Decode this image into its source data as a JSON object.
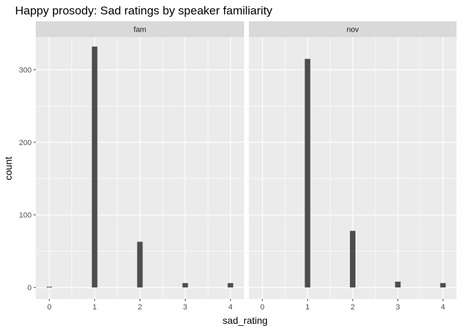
{
  "chart_data": {
    "type": "bar",
    "title": "Happy prosody: Sad ratings by speaker familiarity",
    "xlabel": "sad_rating",
    "ylabel": "count",
    "xlim": [
      -0.3,
      4.3
    ],
    "ylim": [
      -16,
      345
    ],
    "x_ticks": [
      0,
      1,
      2,
      3,
      4
    ],
    "y_ticks": [
      0,
      100,
      200,
      300
    ],
    "grid": true,
    "colors": {
      "panel_bg": "#ebebeb",
      "strip_bg": "#d9d9d9",
      "bar": "#4d4d4d",
      "grid": "#ffffff"
    },
    "facets": [
      {
        "label": "fam",
        "x": [
          0,
          1,
          2,
          3,
          4
        ],
        "values": [
          1,
          332,
          63,
          6,
          6
        ]
      },
      {
        "label": "nov",
        "x": [
          0,
          1,
          2,
          3,
          4
        ],
        "values": [
          0,
          315,
          78,
          8,
          6
        ]
      }
    ]
  }
}
